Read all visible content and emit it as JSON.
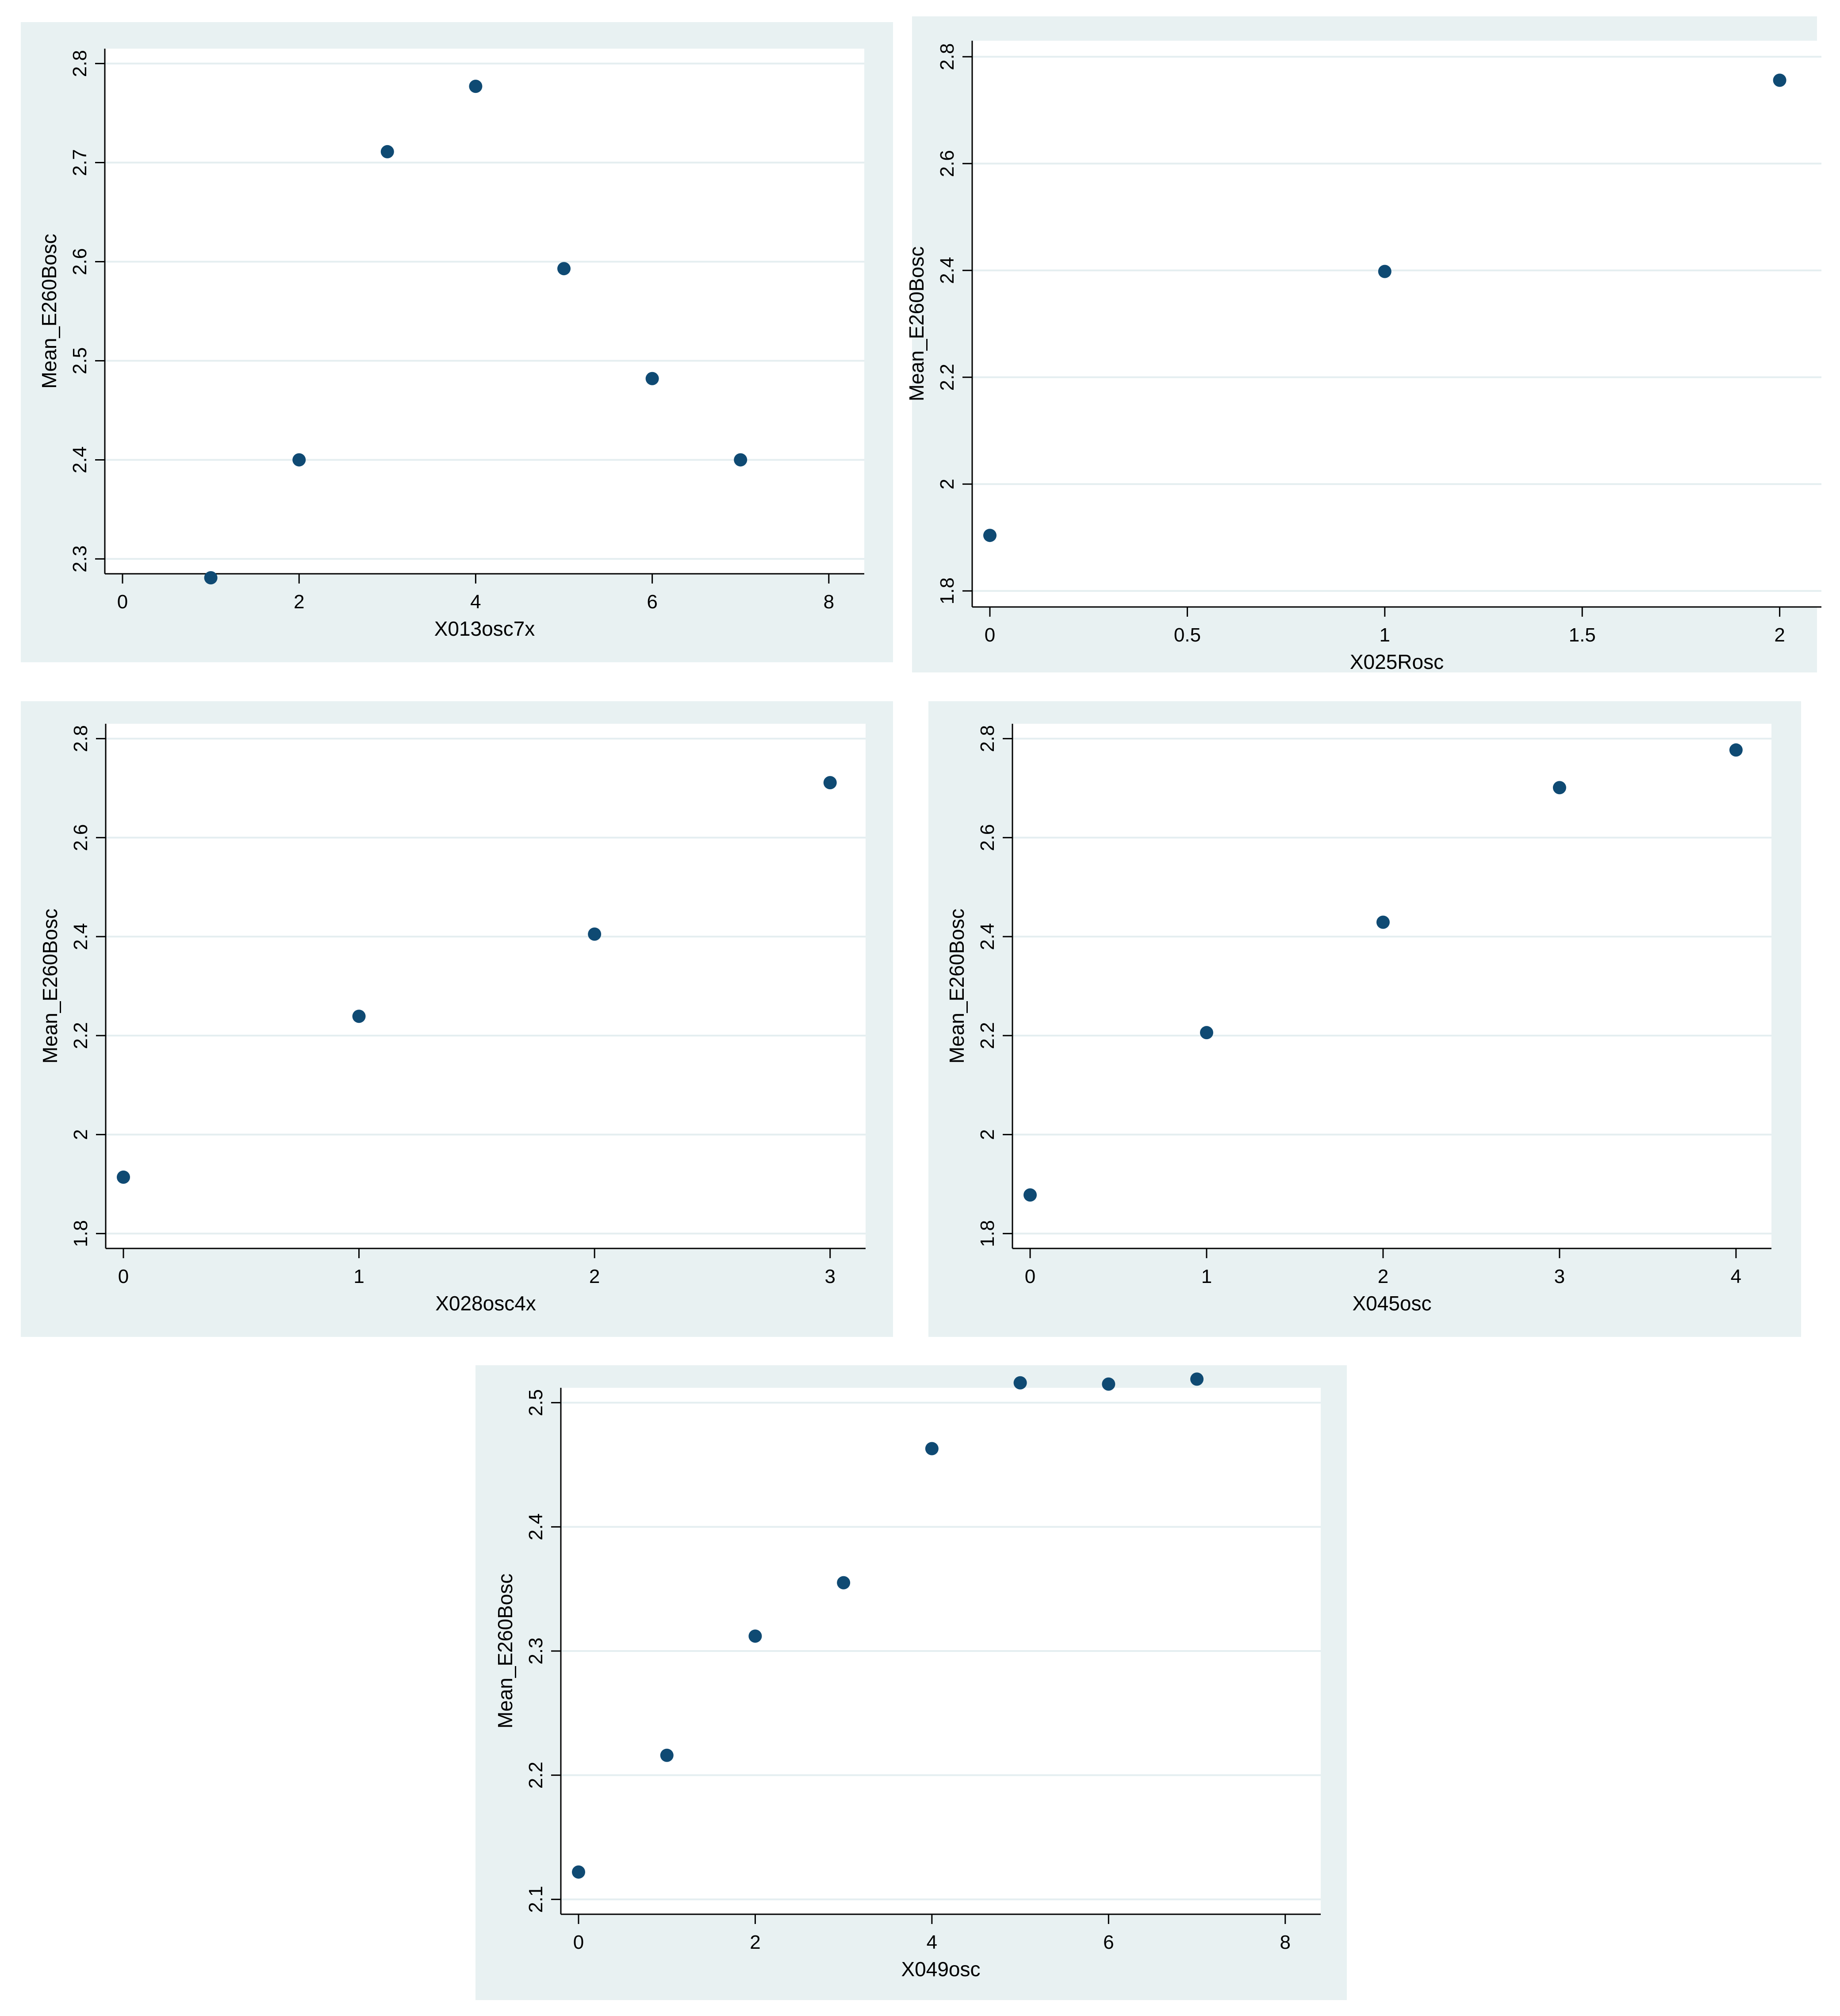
{
  "colors": {
    "panel_bg": "#e8f1f2",
    "plot_bg": "#ffffff",
    "grid": "#e4eef0",
    "marker": "#0f4a73"
  },
  "chart_data": [
    {
      "type": "scatter",
      "xlabel": "X013osc7x",
      "ylabel": "Mean_E260Bosc",
      "xlim": [
        0,
        8
      ],
      "ylim": [
        2.3,
        2.8
      ],
      "xticks": [
        "0",
        "2",
        "4",
        "6",
        "8"
      ],
      "yticks": [
        "2.3",
        "2.4",
        "2.5",
        "2.6",
        "2.7",
        "2.8"
      ],
      "x": [
        1,
        2,
        3,
        4,
        5,
        6,
        7
      ],
      "y": [
        2.281,
        2.4,
        2.711,
        2.777,
        2.593,
        2.482,
        2.4
      ],
      "grid": true
    },
    {
      "type": "scatter",
      "xlabel": "X025Rosc",
      "ylabel": "Mean_E260Bosc",
      "xlim": [
        0,
        2
      ],
      "ylim": [
        1.8,
        2.8
      ],
      "xticks": [
        "0",
        "0.5",
        "1",
        "1.5",
        "2"
      ],
      "yticks": [
        "1.8",
        "2",
        "2.2",
        "2.4",
        "2.6",
        "2.8"
      ],
      "x": [
        0,
        1,
        2
      ],
      "y": [
        1.904,
        2.398,
        2.756
      ],
      "grid": true
    },
    {
      "type": "scatter",
      "xlabel": "X028osc4x",
      "ylabel": "Mean_E260Bosc",
      "xlim": [
        0,
        3
      ],
      "ylim": [
        1.8,
        2.8
      ],
      "xticks": [
        "0",
        "1",
        "2",
        "3"
      ],
      "yticks": [
        "1.8",
        "2",
        "2.2",
        "2.4",
        "2.6",
        "2.8"
      ],
      "x": [
        0,
        1,
        2,
        3
      ],
      "y": [
        1.914,
        2.239,
        2.405,
        2.711
      ],
      "grid": true
    },
    {
      "type": "scatter",
      "xlabel": "X045osc",
      "ylabel": "Mean_E260Bosc",
      "xlim": [
        0,
        4
      ],
      "ylim": [
        1.8,
        2.8
      ],
      "xticks": [
        "0",
        "1",
        "2",
        "3",
        "4"
      ],
      "yticks": [
        "1.8",
        "2",
        "2.2",
        "2.4",
        "2.6",
        "2.8"
      ],
      "x": [
        0,
        1,
        2,
        3,
        4
      ],
      "y": [
        1.878,
        2.206,
        2.429,
        2.701,
        2.777
      ],
      "grid": true
    },
    {
      "type": "scatter",
      "xlabel": "X049osc",
      "ylabel": "Mean_E260Bosc",
      "xlim": [
        0,
        8
      ],
      "ylim": [
        2.1,
        2.5
      ],
      "xticks": [
        "0",
        "2",
        "4",
        "6",
        "8"
      ],
      "yticks": [
        "2.1",
        "2.2",
        "2.3",
        "2.4",
        "2.5"
      ],
      "x": [
        0,
        1,
        2,
        3,
        4,
        5,
        6,
        7
      ],
      "y": [
        2.122,
        2.216,
        2.312,
        2.355,
        2.463,
        2.516,
        2.515,
        2.519
      ],
      "grid": true
    }
  ]
}
